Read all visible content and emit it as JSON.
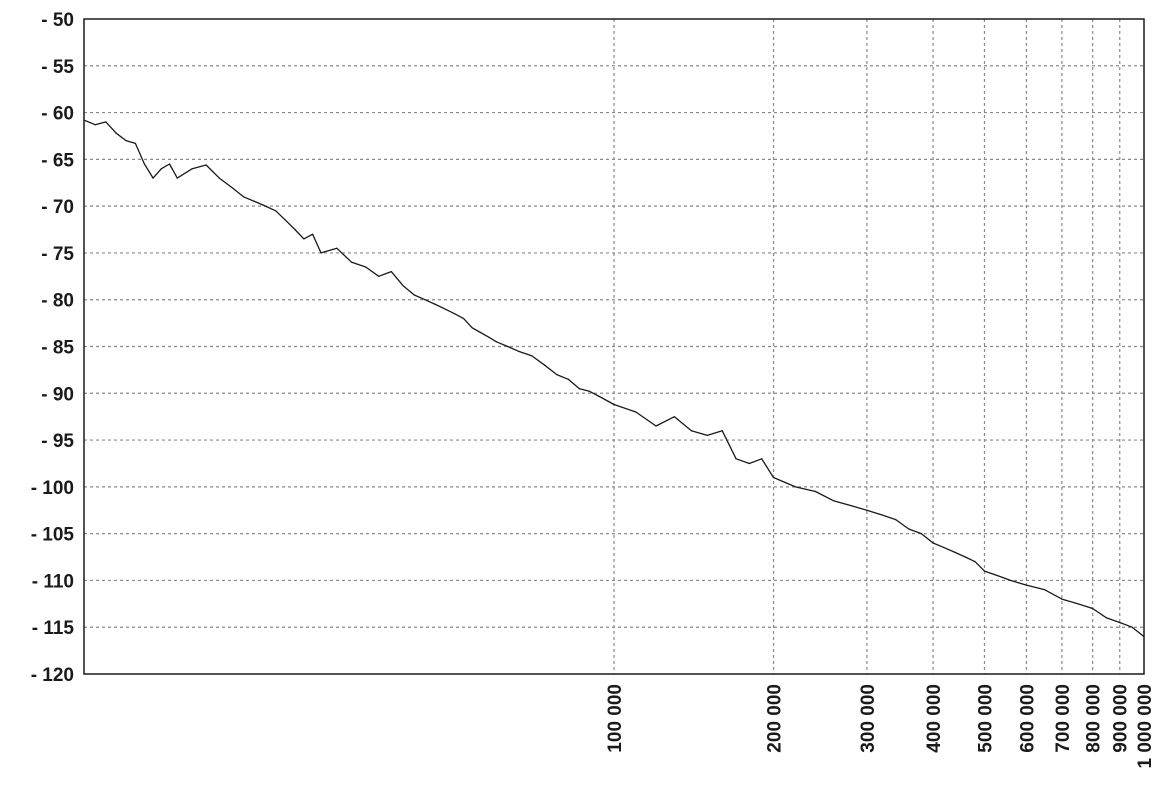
{
  "chart_data": {
    "type": "line",
    "title": "",
    "xlabel": "",
    "ylabel": "",
    "x_scale": "log",
    "xlim": [
      10000,
      1000000
    ],
    "ylim": [
      -120,
      -50
    ],
    "grid": true,
    "y_ticks": [
      {
        "value": -50,
        "label": "- 50"
      },
      {
        "value": -55,
        "label": "- 55"
      },
      {
        "value": -60,
        "label": "- 60"
      },
      {
        "value": -65,
        "label": "- 65"
      },
      {
        "value": -70,
        "label": "- 70"
      },
      {
        "value": -75,
        "label": "- 75"
      },
      {
        "value": -80,
        "label": "- 80"
      },
      {
        "value": -85,
        "label": "- 85"
      },
      {
        "value": -90,
        "label": "- 90"
      },
      {
        "value": -95,
        "label": "- 95"
      },
      {
        "value": -100,
        "label": "- 100"
      },
      {
        "value": -105,
        "label": "- 105"
      },
      {
        "value": -110,
        "label": "- 110"
      },
      {
        "value": -115,
        "label": "- 115"
      },
      {
        "value": -120,
        "label": "- 120"
      }
    ],
    "x_ticks": [
      {
        "value": 100000,
        "label": "100 000"
      },
      {
        "value": 200000,
        "label": "200 000"
      },
      {
        "value": 300000,
        "label": "300 000"
      },
      {
        "value": 400000,
        "label": "400 000"
      },
      {
        "value": 500000,
        "label": "500 000"
      },
      {
        "value": 600000,
        "label": "600 000"
      },
      {
        "value": 700000,
        "label": "700 000"
      },
      {
        "value": 800000,
        "label": "800 000"
      },
      {
        "value": 900000,
        "label": "900 000"
      },
      {
        "value": 1000000,
        "label": "1 000 000"
      }
    ],
    "series": [
      {
        "color": "#1a1a1a",
        "x": [
          10000,
          10500,
          11000,
          11500,
          12000,
          12500,
          13000,
          13500,
          14000,
          14500,
          15000,
          16000,
          17000,
          18000,
          19000,
          20000,
          21000,
          22000,
          23000,
          24000,
          25000,
          26000,
          27000,
          28000,
          30000,
          32000,
          34000,
          36000,
          38000,
          40000,
          42000,
          44000,
          46000,
          48000,
          50000,
          52000,
          54000,
          56000,
          58000,
          60000,
          63000,
          66000,
          70000,
          74000,
          78000,
          82000,
          86000,
          90000,
          95000,
          100000,
          110000,
          120000,
          130000,
          140000,
          150000,
          160000,
          170000,
          180000,
          190000,
          200000,
          220000,
          240000,
          260000,
          280000,
          300000,
          320000,
          340000,
          360000,
          380000,
          400000,
          420000,
          440000,
          460000,
          480000,
          500000,
          530000,
          560000,
          600000,
          650000,
          700000,
          750000,
          800000,
          850000,
          900000,
          950000,
          1000000
        ],
        "y": [
          -60.8,
          -61.3,
          -61,
          -62.2,
          -63,
          -63.3,
          -65.5,
          -67,
          -66,
          -65.5,
          -67,
          -66,
          -65.6,
          -67,
          -68,
          -69,
          -69.5,
          -70,
          -70.5,
          -71.5,
          -72.5,
          -73.5,
          -73,
          -75,
          -74.5,
          -76,
          -76.5,
          -77.5,
          -77,
          -78.5,
          -79.5,
          -80,
          -80.5,
          -81,
          -81.5,
          -82,
          -83,
          -83.5,
          -84,
          -84.5,
          -85,
          -85.5,
          -86,
          -87,
          -88,
          -88.5,
          -89.5,
          -89.8,
          -90.5,
          -91.2,
          -92,
          -93.5,
          -92.5,
          -94,
          -94.5,
          -94,
          -97,
          -97.5,
          -97,
          -99,
          -100,
          -100.5,
          -101.5,
          -102,
          -102.5,
          -103,
          -103.5,
          -104.5,
          -105,
          -106,
          -106.5,
          -107,
          -107.5,
          -108,
          -109,
          -109.5,
          -110,
          -110.5,
          -111,
          -112,
          -112.5,
          -113,
          -114,
          -114.5,
          -115,
          -116
        ]
      }
    ]
  }
}
